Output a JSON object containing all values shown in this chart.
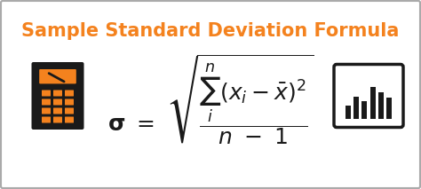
{
  "title": "Sample Standard Deviation Formula",
  "title_color": "#F4821E",
  "title_fontsize": 15,
  "title_fontweight": "bold",
  "sigma_color": "#1a1a1a",
  "bg_color": "#ffffff",
  "border_color": "#aaaaaa",
  "icon_color_orange": "#F4821E",
  "icon_color_dark": "#1a1a1a",
  "fig_width": 4.74,
  "fig_height": 2.13,
  "dpi": 100,
  "xlim": [
    0,
    474
  ],
  "ylim": [
    0,
    213
  ]
}
